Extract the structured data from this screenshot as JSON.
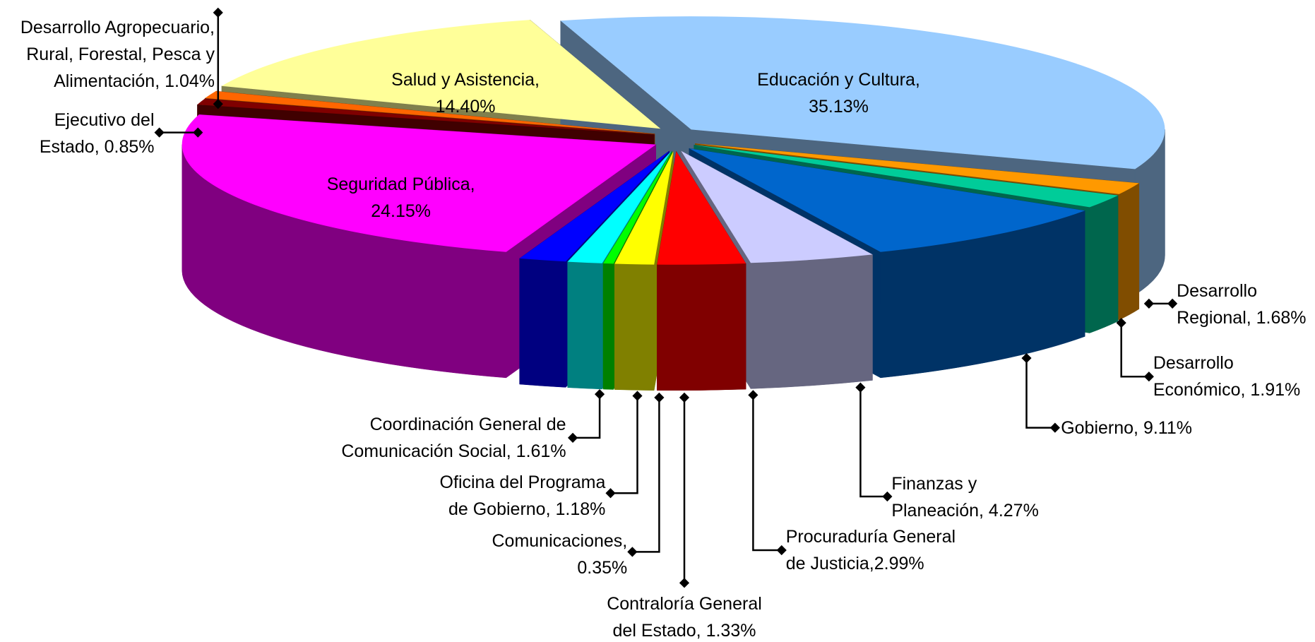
{
  "chart_data": {
    "type": "pie3d",
    "categories": [
      "Educación y Cultura,\n",
      "Desarrollo\nRegional, ",
      "Desarrollo\nEconómico, ",
      "Gobierno, ",
      "Finanzas y\nPlaneación, ",
      "Procuraduría General\nde Justicia,",
      "Contraloría General\ndel Estado, ",
      "Comunicaciones,\n",
      "Oficina del Programa\nde Gobierno, ",
      "Coordinación General de\nComunicación Social, ",
      "Seguridad Pública,\n",
      "Ejecutivo del\nEstado, ",
      "Desarrollo Agropecuario,\nRural, Forestal, Pesca y\nAlimentación, ",
      "Salud y Asistencia,\n"
    ],
    "values": [
      35.13,
      1.68,
      1.91,
      9.11,
      4.27,
      2.99,
      1.33,
      0.35,
      1.18,
      1.61,
      24.15,
      0.85,
      1.04,
      14.4
    ],
    "value_labels": [
      "35.13%",
      "1.68%",
      "1.91%",
      "9.11%",
      "4.27%",
      "2.99%",
      "1.33%",
      "0.35%",
      "1.18%",
      "1.61%",
      "24.15%",
      "0.85%",
      "1.04%",
      "14.40%"
    ],
    "colors": [
      "#99ccff",
      "#ff9900",
      "#00cc99",
      "#0066cc",
      "#ccccff",
      "#ff0000",
      "#ffff00",
      "#00ff00",
      "#00ffff",
      "#0000ff",
      "#ff00ff",
      "#800000",
      "#ff6600",
      "#ffff99"
    ]
  }
}
